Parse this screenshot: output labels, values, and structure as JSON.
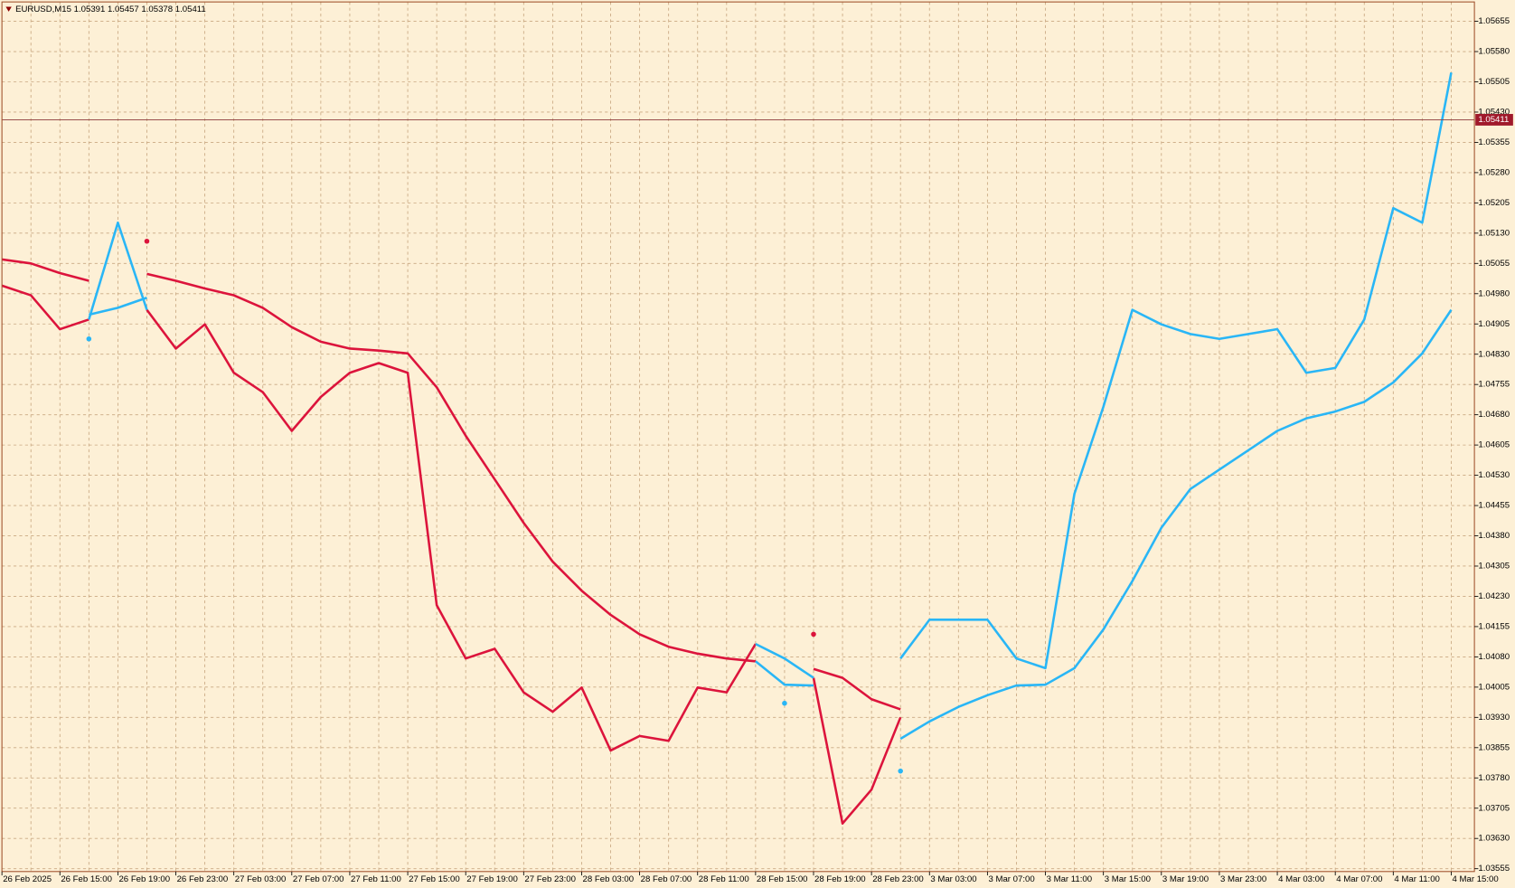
{
  "chart_data": {
    "type": "line",
    "title": "EURUSD,M15  1.05391 1.05457 1.05378 1.05411",
    "categories": [
      "26 Feb 2025",
      null,
      "26 Feb 15:00",
      null,
      "26 Feb 19:00",
      null,
      "26 Feb 23:00",
      null,
      "27 Feb 03:00",
      null,
      "27 Feb 07:00",
      null,
      "27 Feb 11:00",
      null,
      "27 Feb 15:00",
      null,
      "27 Feb 19:00",
      null,
      "27 Feb 23:00",
      null,
      "28 Feb 03:00",
      null,
      "28 Feb 07:00",
      null,
      "28 Feb 11:00",
      null,
      "28 Feb 15:00",
      null,
      "28 Feb 19:00",
      null,
      "28 Feb 23:00",
      null,
      "3 Mar 03:00",
      null,
      "3 Mar 07:00",
      null,
      "3 Mar 11:00",
      null,
      "3 Mar 15:00",
      null,
      "3 Mar 19:00",
      null,
      "3 Mar 23:00",
      null,
      "4 Mar 03:00",
      null,
      "4 Mar 07:00",
      null,
      "4 Mar 11:00",
      null,
      "4 Mar 15:00"
    ],
    "series": [
      {
        "color": "#dc143c",
        "style": "line",
        "values": [
          1.05,
          1.04976,
          1.04892,
          1.04916,
          null,
          1.0494,
          1.04844,
          1.04904,
          1.04784,
          1.04736,
          1.0464,
          1.04724,
          1.04784,
          1.04808,
          1.04784,
          1.04208,
          1.04076,
          1.041,
          1.03992,
          1.03944,
          1.04004,
          1.03848,
          1.03884,
          1.03872,
          1.04004,
          1.03992,
          1.04112,
          null,
          1.04028,
          1.03667,
          1.03751,
          1.0393,
          null,
          null,
          null,
          null,
          null,
          null,
          null,
          null,
          null,
          null,
          null,
          null,
          null,
          null,
          null,
          null,
          null,
          null,
          null
        ]
      },
      {
        "color": "#29b6f6",
        "style": "line",
        "values": [
          null,
          null,
          null,
          1.04916,
          1.05156,
          1.0494,
          null,
          null,
          null,
          null,
          null,
          null,
          null,
          null,
          null,
          null,
          null,
          null,
          null,
          null,
          null,
          null,
          null,
          null,
          null,
          null,
          1.04112,
          1.04076,
          1.04028,
          null,
          null,
          1.04076,
          1.04172,
          1.04172,
          1.04172,
          1.04076,
          1.04052,
          1.04484,
          1.047,
          1.0494,
          1.04904,
          1.0488,
          1.04868,
          1.0488,
          1.04892,
          1.04784,
          1.04796,
          1.04916,
          1.05192,
          1.05156,
          1.05528
        ]
      },
      {
        "color": "#dc143c",
        "style": "line",
        "values": [
          1.05065,
          1.05055,
          1.05031,
          1.05012,
          null,
          1.05029,
          1.05012,
          1.04993,
          1.04976,
          1.04945,
          1.04897,
          1.04861,
          1.04844,
          1.04839,
          1.04832,
          1.04748,
          1.04628,
          1.0452,
          1.04412,
          1.04316,
          1.04244,
          1.04184,
          1.04136,
          1.04105,
          1.04088,
          1.04076,
          1.04069,
          null,
          1.0405,
          1.04028,
          1.03975,
          1.0395,
          null,
          null,
          null,
          null,
          null,
          null,
          null,
          null,
          null,
          null,
          null,
          null,
          null,
          null,
          null,
          null,
          null,
          null,
          null
        ]
      },
      {
        "color": "#29b6f6",
        "style": "line",
        "values": [
          null,
          null,
          null,
          1.04928,
          1.04945,
          1.0497,
          null,
          null,
          null,
          null,
          null,
          null,
          null,
          null,
          null,
          null,
          null,
          null,
          null,
          null,
          null,
          null,
          null,
          null,
          null,
          null,
          1.04069,
          1.04011,
          1.04009,
          null,
          null,
          1.03877,
          1.0392,
          1.03956,
          1.03985,
          1.04009,
          1.04011,
          1.04052,
          1.04148,
          1.04268,
          1.044,
          1.04496,
          1.04544,
          1.04592,
          1.0464,
          1.04671,
          1.04688,
          1.04712,
          1.0476,
          1.04832,
          1.0494
        ]
      },
      {
        "color": "#dc143c",
        "style": "dots",
        "values": [
          null,
          null,
          null,
          null,
          null,
          1.0511,
          null,
          null,
          null,
          null,
          null,
          null,
          null,
          null,
          null,
          null,
          null,
          null,
          null,
          null,
          null,
          null,
          null,
          null,
          null,
          null,
          null,
          null,
          1.04136,
          null,
          null,
          null,
          null,
          null,
          null,
          null,
          null,
          null,
          null,
          null,
          null,
          null,
          null,
          null,
          null,
          null,
          null,
          null,
          null,
          null,
          null
        ]
      },
      {
        "color": "#29b6f6",
        "style": "dots",
        "values": [
          null,
          null,
          null,
          1.04868,
          null,
          null,
          null,
          null,
          null,
          null,
          null,
          null,
          null,
          null,
          null,
          null,
          null,
          null,
          null,
          null,
          null,
          null,
          null,
          null,
          null,
          null,
          null,
          1.03965,
          null,
          null,
          null,
          1.03797,
          null,
          null,
          null,
          null,
          null,
          null,
          null,
          null,
          null,
          null,
          null,
          null,
          null,
          null,
          null,
          null,
          null,
          null,
          null
        ]
      }
    ],
    "current_price": 1.05411,
    "ylim": [
      1.03548,
      1.05703
    ],
    "yticks": [
      1.03555,
      {
        "value": 1.0363,
        "label": "1.03630"
      },
      1.03705,
      {
        "value": 1.0378,
        "label": "1.03780"
      },
      1.03855,
      {
        "value": 1.0393,
        "label": "1.03930"
      },
      1.04005,
      {
        "value": 1.0408,
        "label": "1.04080"
      },
      1.04155,
      {
        "value": 1.0423,
        "label": "1.04230"
      },
      1.04305,
      {
        "value": 1.0438,
        "label": "1.04380"
      },
      1.04455,
      {
        "value": 1.0453,
        "label": "1.04530"
      },
      1.04605,
      {
        "value": 1.0468,
        "label": "1.04680"
      },
      1.04755,
      {
        "value": 1.0483,
        "label": "1.04830"
      },
      1.04905,
      {
        "value": 1.0498,
        "label": "1.04980"
      },
      1.05055,
      {
        "value": 1.0513,
        "label": "1.05130"
      },
      1.05205,
      {
        "value": 1.0528,
        "label": "1.05280"
      },
      1.05355,
      {
        "value": 1.0543,
        "label": "1.05430"
      },
      1.05505,
      {
        "value": 1.0558,
        "label": "1.05580"
      },
      1.05655
    ],
    "grid": true
  }
}
